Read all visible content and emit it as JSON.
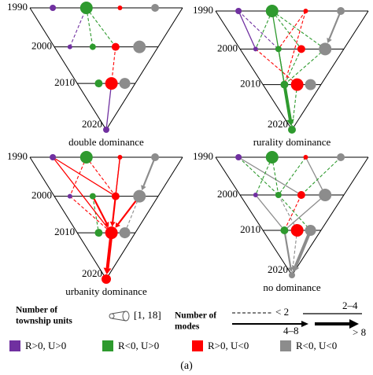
{
  "panels": [
    {
      "title": "double dominance",
      "years": [
        "1990",
        "2000",
        "2010",
        "2020"
      ]
    },
    {
      "title": "rurality dominance",
      "years": [
        "1990",
        "2000",
        "2010",
        "2020"
      ]
    },
    {
      "title": "urbanity dominance",
      "years": [
        "1990",
        "2000",
        "2010",
        "2020"
      ]
    },
    {
      "title": "no dominance",
      "years": [
        "1990",
        "2000",
        "2010",
        "2020"
      ]
    }
  ],
  "legend": {
    "size_title": [
      "Number of",
      "township units"
    ],
    "size_range": "[1, 18]",
    "modes_title": [
      "Number of",
      "modes"
    ],
    "modes": [
      "< 2",
      "2–4",
      "4–8",
      "> 8"
    ],
    "classes": [
      "R>0, U>0",
      "R<0, U>0",
      "R>0, U<0",
      "R<0, U<0"
    ]
  },
  "caption": "(a)"
}
